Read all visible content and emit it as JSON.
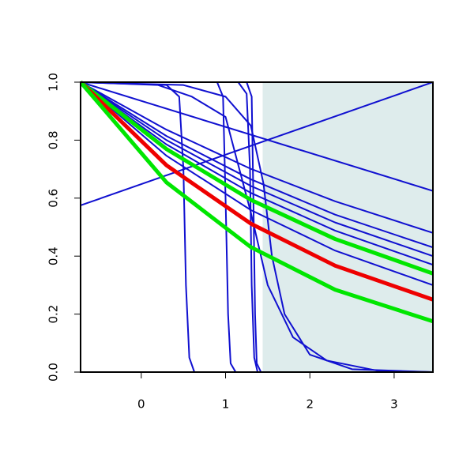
{
  "chart_data": {
    "type": "line",
    "xlim": [
      -0.72,
      3.46
    ],
    "ylim": [
      0,
      1
    ],
    "xticks": [
      0,
      1,
      2,
      3
    ],
    "yticks": [
      {
        "value": 0,
        "label": "0.0"
      },
      0.2,
      0.4,
      0.6,
      0.8,
      {
        "value": 1,
        "label": "1.0"
      }
    ],
    "shaded_xlim": [
      1.44,
      3.46
    ],
    "shade_color": "#deecec",
    "series": [
      {
        "color": "#1010d0",
        "line_width": 2,
        "x": [
          -0.72,
          3.46
        ],
        "values": [
          0.575,
          1.0
        ]
      },
      {
        "color": "#1010d0",
        "line_width": 2,
        "x": [
          -0.72,
          3.46
        ],
        "values": [
          1.0,
          0.625
        ]
      },
      {
        "color": "#1010d0",
        "line_width": 2,
        "x": [
          -0.72,
          0.3,
          1.3,
          2.3,
          3.46
        ],
        "values": [
          1,
          0.836,
          0.701,
          0.589,
          0.48
        ]
      },
      {
        "color": "#1010d0",
        "line_width": 2,
        "x": [
          -0.72,
          0.3,
          1.3,
          2.3,
          3.46
        ],
        "values": [
          1,
          0.814,
          0.665,
          0.543,
          0.43
        ]
      },
      {
        "color": "#1010d0",
        "line_width": 2,
        "x": [
          -0.72,
          0.3,
          1.3,
          2.3,
          3.46
        ],
        "values": [
          1,
          0.8,
          0.642,
          0.516,
          0.4
        ]
      },
      {
        "color": "#1010d0",
        "line_width": 2,
        "x": [
          -0.72,
          0.3,
          1.3,
          2.3,
          3.46
        ],
        "values": [
          1,
          0.785,
          0.618,
          0.488,
          0.37
        ]
      },
      {
        "color": "#1010d0",
        "line_width": 2,
        "x": [
          -0.72,
          0.3,
          1.3,
          2.3,
          3.46
        ],
        "values": [
          1,
          0.746,
          0.559,
          0.419,
          0.3
        ]
      },
      {
        "color": "#1010d0",
        "line_width": 2,
        "x": [
          -0.72,
          0.3,
          0.45,
          0.5,
          0.53,
          0.57,
          0.63,
          3.46
        ],
        "values": [
          1,
          0.99,
          0.95,
          0.7,
          0.3,
          0.05,
          0,
          0
        ]
      },
      {
        "color": "#1010d0",
        "line_width": 2,
        "x": [
          -0.72,
          0.9,
          0.97,
          1.0,
          1.03,
          1.06,
          1.12,
          3.46
        ],
        "values": [
          1,
          1,
          0.95,
          0.6,
          0.2,
          0.03,
          0,
          0
        ]
      },
      {
        "color": "#1010d0",
        "line_width": 2,
        "x": [
          -0.72,
          1.15,
          1.25,
          1.29,
          1.31,
          1.34,
          1.38,
          3.46
        ],
        "values": [
          1,
          1,
          0.96,
          0.7,
          0.3,
          0.05,
          0,
          0
        ]
      },
      {
        "color": "#1010d0",
        "line_width": 2,
        "x": [
          -0.72,
          1.25,
          1.31,
          1.33,
          1.35,
          1.37,
          1.42,
          3.46
        ],
        "values": [
          1,
          1,
          0.95,
          0.6,
          0.2,
          0.03,
          0,
          0
        ]
      },
      {
        "color": "#1010d0",
        "line_width": 2,
        "x": [
          -0.72,
          0.5,
          1.0,
          1.3,
          1.45,
          1.55,
          1.7,
          2.0,
          2.5,
          3.46
        ],
        "values": [
          1,
          0.99,
          0.95,
          0.85,
          0.65,
          0.4,
          0.2,
          0.06,
          0.01,
          0
        ]
      },
      {
        "color": "#1010d0",
        "line_width": 2,
        "x": [
          -0.72,
          0.2,
          0.6,
          1.0,
          1.3,
          1.5,
          1.8,
          2.2,
          2.8,
          3.46
        ],
        "values": [
          1,
          0.99,
          0.95,
          0.88,
          0.55,
          0.3,
          0.12,
          0.04,
          0.005,
          0
        ]
      },
      {
        "color": "#00e600",
        "line_width": 5,
        "x": [
          -0.72,
          0.3,
          1.3,
          2.3,
          3.46
        ],
        "values": [
          1,
          0.769,
          0.594,
          0.459,
          0.34
        ]
      },
      {
        "color": "#ee0000",
        "line_width": 5,
        "x": [
          -0.72,
          0.3,
          1.3,
          2.3,
          3.46
        ],
        "values": [
          1,
          0.713,
          0.512,
          0.367,
          0.25
        ]
      },
      {
        "color": "#00e600",
        "line_width": 5,
        "x": [
          -0.72,
          0.3,
          1.3,
          2.3,
          3.46
        ],
        "values": [
          1,
          0.654,
          0.431,
          0.284,
          0.175
        ]
      }
    ]
  }
}
